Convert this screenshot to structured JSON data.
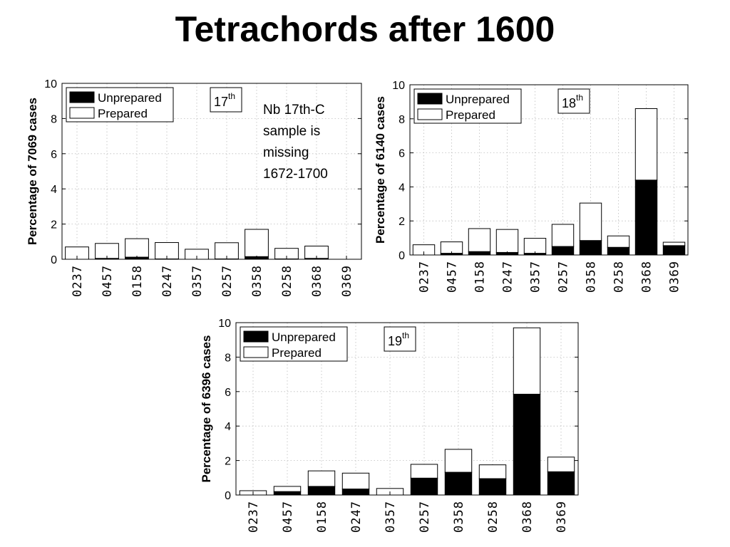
{
  "slide": {
    "title": "Tetrachords after 1600",
    "note": "Nb 17th-C\nsample is\nmissing\n1672-1700"
  },
  "chart_data": [
    {
      "type": "bar",
      "stacked": true,
      "century": "17",
      "century_sup": "th",
      "ylabel": "Percentage of 7069 cases",
      "ylim": [
        0,
        10
      ],
      "yticks": [
        0,
        2,
        4,
        6,
        8,
        10
      ],
      "grid": true,
      "legend_position": "top-left",
      "categories": [
        "0237",
        "0457",
        "0158",
        "0247",
        "0357",
        "0257",
        "0358",
        "0258",
        "0368",
        "0369"
      ],
      "series": [
        {
          "name": "Unprepared",
          "color": "#000000",
          "values": [
            0.0,
            0.05,
            0.12,
            0.02,
            0.0,
            0.02,
            0.15,
            0.02,
            0.05,
            0.0
          ]
        },
        {
          "name": "Prepared",
          "color": "#ffffff",
          "values": [
            0.7,
            0.85,
            1.05,
            0.93,
            0.57,
            0.92,
            1.55,
            0.6,
            0.7,
            0.0
          ]
        }
      ]
    },
    {
      "type": "bar",
      "stacked": true,
      "century": "18",
      "century_sup": "th",
      "ylabel": "Percentage of 6140 cases",
      "ylim": [
        0,
        10
      ],
      "yticks": [
        0,
        2,
        4,
        6,
        8,
        10
      ],
      "grid": true,
      "legend_position": "top-left",
      "categories": [
        "0237",
        "0457",
        "0158",
        "0247",
        "0357",
        "0257",
        "0358",
        "0258",
        "0368",
        "0369"
      ],
      "series": [
        {
          "name": "Unprepared",
          "color": "#000000",
          "values": [
            0.0,
            0.1,
            0.2,
            0.15,
            0.1,
            0.5,
            0.85,
            0.45,
            4.4,
            0.55
          ]
        },
        {
          "name": "Prepared",
          "color": "#ffffff",
          "values": [
            0.6,
            0.67,
            1.35,
            1.35,
            0.88,
            1.3,
            2.2,
            0.67,
            4.2,
            0.2
          ]
        }
      ]
    },
    {
      "type": "bar",
      "stacked": true,
      "century": "19",
      "century_sup": "th",
      "ylabel": "Percentage of 6396 cases",
      "ylim": [
        0,
        10
      ],
      "yticks": [
        0,
        2,
        4,
        6,
        8,
        10
      ],
      "grid": true,
      "legend_position": "top-left",
      "categories": [
        "0237",
        "0457",
        "0158",
        "0247",
        "0357",
        "0257",
        "0358",
        "0258",
        "0368",
        "0369"
      ],
      "series": [
        {
          "name": "Unprepared",
          "color": "#000000",
          "values": [
            0.0,
            0.2,
            0.5,
            0.35,
            0.0,
            0.98,
            1.32,
            0.95,
            5.85,
            1.35
          ]
        },
        {
          "name": "Prepared",
          "color": "#ffffff",
          "values": [
            0.25,
            0.3,
            0.9,
            0.92,
            0.38,
            0.8,
            1.33,
            0.8,
            3.85,
            0.85
          ]
        }
      ]
    }
  ]
}
